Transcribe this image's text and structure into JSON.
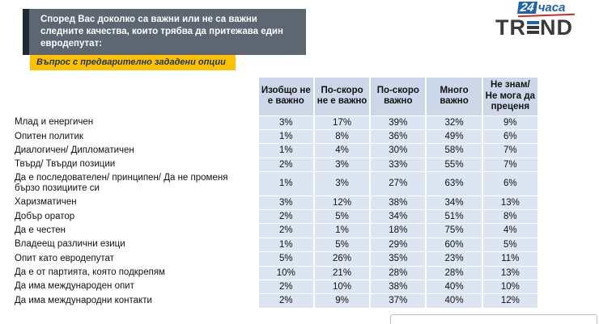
{
  "header": {
    "title": "Според Вас доколко са важни или не са важни следните качества, които трябва да притежава един евродепутат:",
    "subtitle": "Въпрос с предварително зададени опции"
  },
  "logo": {
    "newspaper_number": "24",
    "newspaper_word": "часа",
    "trend_left": "TR",
    "trend_right": "ND"
  },
  "colors": {
    "title_box": "#5c6771",
    "title_accent": "#1d2a38",
    "subtitle_box": "#ffc000",
    "table_header": "#ccd8ea",
    "table_cell": "#dce6f2",
    "logo_blue": "#1f63ac",
    "logo_red": "#d22a20"
  },
  "chart_data": {
    "type": "table",
    "title": "Според Вас доколко са важни или не са важни следните качества, които трябва да притежава един евродепутат:",
    "columns": [
      "Изобщо не е важно",
      "По-скоро не е важно",
      "По-скоро важно",
      "Много важно",
      "Не знам/ Не мога да преценя"
    ],
    "rows": [
      {
        "label": "Млад и енергичен",
        "values": [
          "3%",
          "17%",
          "39%",
          "32%",
          "9%"
        ]
      },
      {
        "label": "Опитен политик",
        "values": [
          "1%",
          "8%",
          "36%",
          "49%",
          "6%"
        ]
      },
      {
        "label": "Диалогичен/ Дипломатичен",
        "values": [
          "1%",
          "4%",
          "30%",
          "58%",
          "7%"
        ]
      },
      {
        "label": "Твърд/ Твърди позиции",
        "values": [
          "2%",
          "3%",
          "33%",
          "55%",
          "7%"
        ]
      },
      {
        "label": "Да е последователен/ принципен/ Да не променя бързо позициите си",
        "values": [
          "1%",
          "3%",
          "27%",
          "63%",
          "6%"
        ]
      },
      {
        "label": "Харизматичен",
        "values": [
          "3%",
          "12%",
          "38%",
          "34%",
          "13%"
        ]
      },
      {
        "label": "Добър оратор",
        "values": [
          "2%",
          "5%",
          "34%",
          "51%",
          "8%"
        ]
      },
      {
        "label": "Да е честен",
        "values": [
          "2%",
          "1%",
          "18%",
          "75%",
          "4%"
        ]
      },
      {
        "label": "Владеещ различни езици",
        "values": [
          "1%",
          "5%",
          "29%",
          "60%",
          "5%"
        ]
      },
      {
        "label": "Опит като евродепутат",
        "values": [
          "5%",
          "26%",
          "35%",
          "23%",
          "11%"
        ]
      },
      {
        "label": "Да е от партията, която подкрепям",
        "values": [
          "10%",
          "21%",
          "28%",
          "28%",
          "13%"
        ]
      },
      {
        "label": "Да има международен опит",
        "values": [
          "2%",
          "10%",
          "38%",
          "40%",
          "10%"
        ]
      },
      {
        "label": "Да има международни контакти",
        "values": [
          "2%",
          "9%",
          "37%",
          "40%",
          "12%"
        ]
      }
    ]
  }
}
